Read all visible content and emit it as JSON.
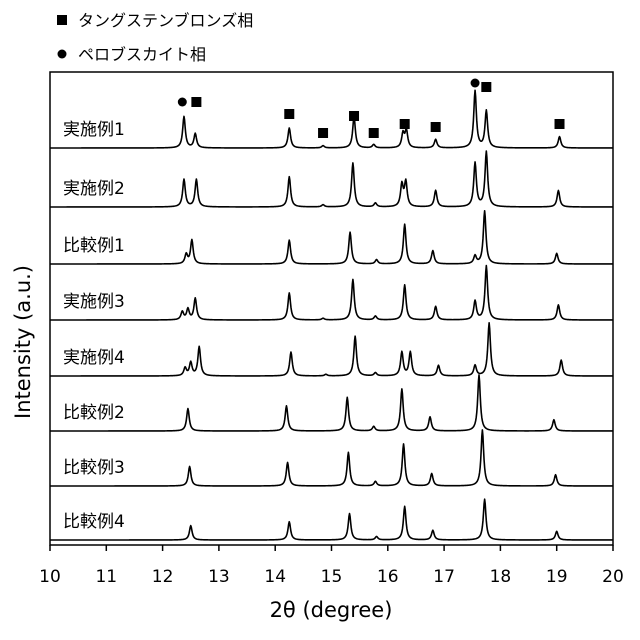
{
  "chart_data": {
    "type": "line",
    "title": "",
    "xlabel": "2θ (degree)",
    "ylabel": "Intensity (a.u.)",
    "xlim": [
      10,
      20
    ],
    "x_ticks": [
      10,
      11,
      12,
      13,
      14,
      15,
      16,
      17,
      18,
      19,
      20
    ],
    "grid": false,
    "legend": {
      "placement": "top-left",
      "entries": [
        {
          "marker": "square",
          "label": "タングステンブロンズ相"
        },
        {
          "marker": "circle",
          "label": "ペロブスカイト相"
        }
      ]
    },
    "phase_markers": [
      {
        "marker": "circle",
        "x": 12.35
      },
      {
        "marker": "square",
        "x": 12.6
      },
      {
        "marker": "square",
        "x": 14.25
      },
      {
        "marker": "square",
        "x": 14.85
      },
      {
        "marker": "square",
        "x": 15.4
      },
      {
        "marker": "square",
        "x": 15.75
      },
      {
        "marker": "square",
        "x": 16.3
      },
      {
        "marker": "square",
        "x": 16.85
      },
      {
        "marker": "circle",
        "x": 17.55
      },
      {
        "marker": "square",
        "x": 17.75
      },
      {
        "marker": "square",
        "x": 19.05
      }
    ],
    "series": [
      {
        "name": "実施例1",
        "peaks": [
          {
            "x": 12.38,
            "h": 0.55
          },
          {
            "x": 12.58,
            "h": 0.25
          },
          {
            "x": 14.25,
            "h": 0.35
          },
          {
            "x": 14.85,
            "h": 0.04
          },
          {
            "x": 15.4,
            "h": 0.55
          },
          {
            "x": 15.75,
            "h": 0.06
          },
          {
            "x": 16.27,
            "h": 0.25
          },
          {
            "x": 16.33,
            "h": 0.3
          },
          {
            "x": 16.85,
            "h": 0.15
          },
          {
            "x": 17.55,
            "h": 1.0
          },
          {
            "x": 17.75,
            "h": 0.65
          },
          {
            "x": 19.05,
            "h": 0.2
          }
        ]
      },
      {
        "name": "実施例2",
        "peaks": [
          {
            "x": 12.38,
            "h": 0.5
          },
          {
            "x": 12.6,
            "h": 0.5
          },
          {
            "x": 14.25,
            "h": 0.55
          },
          {
            "x": 14.85,
            "h": 0.04
          },
          {
            "x": 15.38,
            "h": 0.8
          },
          {
            "x": 15.78,
            "h": 0.07
          },
          {
            "x": 16.25,
            "h": 0.4
          },
          {
            "x": 16.32,
            "h": 0.45
          },
          {
            "x": 16.85,
            "h": 0.3
          },
          {
            "x": 17.55,
            "h": 0.8
          },
          {
            "x": 17.75,
            "h": 1.0
          },
          {
            "x": 19.03,
            "h": 0.3
          }
        ]
      },
      {
        "name": "比較例1",
        "peaks": [
          {
            "x": 12.42,
            "h": 0.18
          },
          {
            "x": 12.52,
            "h": 0.45
          },
          {
            "x": 14.25,
            "h": 0.45
          },
          {
            "x": 15.33,
            "h": 0.6
          },
          {
            "x": 15.8,
            "h": 0.08
          },
          {
            "x": 16.3,
            "h": 0.75
          },
          {
            "x": 16.8,
            "h": 0.25
          },
          {
            "x": 17.55,
            "h": 0.15
          },
          {
            "x": 17.72,
            "h": 1.0
          },
          {
            "x": 19.0,
            "h": 0.2
          }
        ]
      },
      {
        "name": "実施例3",
        "peaks": [
          {
            "x": 12.35,
            "h": 0.15
          },
          {
            "x": 12.45,
            "h": 0.2
          },
          {
            "x": 12.58,
            "h": 0.4
          },
          {
            "x": 14.25,
            "h": 0.5
          },
          {
            "x": 14.85,
            "h": 0.03
          },
          {
            "x": 15.38,
            "h": 0.75
          },
          {
            "x": 15.78,
            "h": 0.07
          },
          {
            "x": 16.3,
            "h": 0.65
          },
          {
            "x": 16.85,
            "h": 0.25
          },
          {
            "x": 17.55,
            "h": 0.35
          },
          {
            "x": 17.75,
            "h": 1.0
          },
          {
            "x": 19.03,
            "h": 0.28
          }
        ]
      },
      {
        "name": "実施例4",
        "peaks": [
          {
            "x": 12.4,
            "h": 0.15
          },
          {
            "x": 12.5,
            "h": 0.25
          },
          {
            "x": 12.65,
            "h": 0.55
          },
          {
            "x": 14.28,
            "h": 0.45
          },
          {
            "x": 14.9,
            "h": 0.03
          },
          {
            "x": 15.42,
            "h": 0.75
          },
          {
            "x": 15.78,
            "h": 0.06
          },
          {
            "x": 16.25,
            "h": 0.45
          },
          {
            "x": 16.4,
            "h": 0.45
          },
          {
            "x": 16.9,
            "h": 0.2
          },
          {
            "x": 17.55,
            "h": 0.2
          },
          {
            "x": 17.8,
            "h": 1.0
          },
          {
            "x": 19.08,
            "h": 0.3
          }
        ]
      },
      {
        "name": "比較例2",
        "peaks": [
          {
            "x": 12.45,
            "h": 0.4
          },
          {
            "x": 14.2,
            "h": 0.45
          },
          {
            "x": 15.28,
            "h": 0.6
          },
          {
            "x": 15.75,
            "h": 0.08
          },
          {
            "x": 16.25,
            "h": 0.75
          },
          {
            "x": 16.75,
            "h": 0.25
          },
          {
            "x": 17.62,
            "h": 1.0
          },
          {
            "x": 18.95,
            "h": 0.2
          }
        ]
      },
      {
        "name": "比較例3",
        "peaks": [
          {
            "x": 12.48,
            "h": 0.35
          },
          {
            "x": 14.22,
            "h": 0.42
          },
          {
            "x": 15.3,
            "h": 0.6
          },
          {
            "x": 15.78,
            "h": 0.08
          },
          {
            "x": 16.28,
            "h": 0.75
          },
          {
            "x": 16.78,
            "h": 0.22
          },
          {
            "x": 17.68,
            "h": 1.0
          },
          {
            "x": 18.98,
            "h": 0.2
          }
        ]
      },
      {
        "name": "比較例4",
        "peaks": [
          {
            "x": 12.5,
            "h": 0.3
          },
          {
            "x": 14.25,
            "h": 0.38
          },
          {
            "x": 15.32,
            "h": 0.55
          },
          {
            "x": 15.8,
            "h": 0.07
          },
          {
            "x": 16.3,
            "h": 0.7
          },
          {
            "x": 16.8,
            "h": 0.2
          },
          {
            "x": 17.72,
            "h": 0.85
          },
          {
            "x": 19.0,
            "h": 0.18
          }
        ]
      }
    ]
  }
}
